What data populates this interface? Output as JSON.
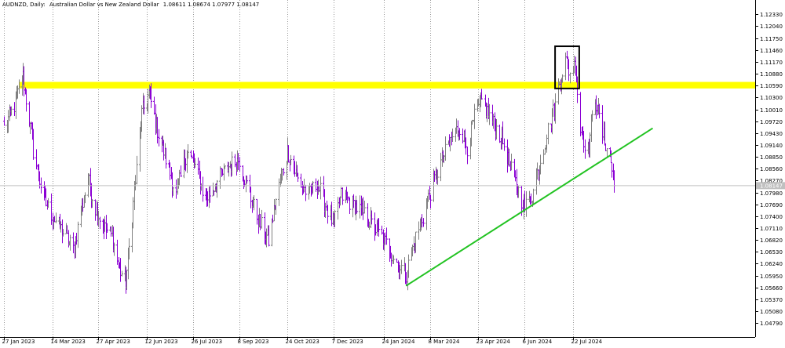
{
  "chart_header": {
    "symbol": "AUDNZD, Daily:",
    "description": "Australian Dollar vs New Zealand Dollar",
    "ohlc": "1.08611 1.08674 1.07977 1.08147"
  },
  "chart_data": {
    "type": "bar",
    "title": "AUDNZD, Daily:  Australian Dollar vs New Zealand Dollar  1.08611 1.08674 1.07977 1.08147",
    "xlabel": "",
    "ylabel": "",
    "ylim": [
      1.0445,
      1.1268
    ],
    "x_date_range": [
      "2023-01-27",
      "2024-08-30"
    ],
    "grid": "vertical-dotted",
    "current_price": 1.08147,
    "current_price_label": "1.08147",
    "y_ticks": [
      "1.12330",
      "1.12040",
      "1.11750",
      "1.11460",
      "1.11170",
      "1.10880",
      "1.10590",
      "1.10300",
      "1.10010",
      "1.09720",
      "1.09430",
      "1.09140",
      "1.08850",
      "1.08560",
      "1.08270",
      "1.07980",
      "1.07690",
      "1.07400",
      "1.07110",
      "1.06820",
      "1.06530",
      "1.06240",
      "1.05950",
      "1.05660",
      "1.05370",
      "1.05080",
      "1.04790"
    ],
    "x_ticks": [
      {
        "date": "2023-01-27",
        "label": "27 Jan 2023"
      },
      {
        "date": "2023-03-14",
        "label": "14 Mar 2023"
      },
      {
        "date": "2023-04-27",
        "label": "27 Apr 2023"
      },
      {
        "date": "2023-06-12",
        "label": "12 Jun 2023"
      },
      {
        "date": "2023-07-26",
        "label": "26 Jul 2023"
      },
      {
        "date": "2023-09-08",
        "label": "8 Sep 2023"
      },
      {
        "date": "2023-10-24",
        "label": "24 Oct 2023"
      },
      {
        "date": "2023-12-07",
        "label": "7 Dec 2023"
      },
      {
        "date": "2024-01-24",
        "label": "24 Jan 2024"
      },
      {
        "date": "2024-03-08",
        "label": "8 Mar 2024"
      },
      {
        "date": "2024-04-23",
        "label": "23 Apr 2024"
      },
      {
        "date": "2024-06-06",
        "label": "6 Jun 2024"
      },
      {
        "date": "2024-07-22",
        "label": "22 Jul 2024"
      }
    ],
    "price_path": [
      {
        "date": "2023-01-27",
        "close": 1.0955
      },
      {
        "date": "2023-02-06",
        "close": 1.101
      },
      {
        "date": "2023-02-14",
        "close": 1.108
      },
      {
        "date": "2023-02-24",
        "close": 1.09
      },
      {
        "date": "2023-03-06",
        "close": 1.078
      },
      {
        "date": "2023-03-14",
        "close": 1.074
      },
      {
        "date": "2023-03-24",
        "close": 1.07
      },
      {
        "date": "2023-04-03",
        "close": 1.066
      },
      {
        "date": "2023-04-10",
        "close": 1.075
      },
      {
        "date": "2023-04-17",
        "close": 1.083
      },
      {
        "date": "2023-04-24",
        "close": 1.076
      },
      {
        "date": "2023-05-03",
        "close": 1.071
      },
      {
        "date": "2023-05-10",
        "close": 1.069
      },
      {
        "date": "2023-05-17",
        "close": 1.061
      },
      {
        "date": "2023-05-23",
        "close": 1.058
      },
      {
        "date": "2023-05-30",
        "close": 1.077
      },
      {
        "date": "2023-06-07",
        "close": 1.099
      },
      {
        "date": "2023-06-14",
        "close": 1.104
      },
      {
        "date": "2023-06-21",
        "close": 1.096
      },
      {
        "date": "2023-06-30",
        "close": 1.088
      },
      {
        "date": "2023-07-10",
        "close": 1.079
      },
      {
        "date": "2023-07-20",
        "close": 1.09
      },
      {
        "date": "2023-07-28",
        "close": 1.086
      },
      {
        "date": "2023-08-07",
        "close": 1.078
      },
      {
        "date": "2023-08-17",
        "close": 1.082
      },
      {
        "date": "2023-08-28",
        "close": 1.086
      },
      {
        "date": "2023-09-08",
        "close": 1.088
      },
      {
        "date": "2023-09-18",
        "close": 1.079
      },
      {
        "date": "2023-09-28",
        "close": 1.072
      },
      {
        "date": "2023-10-06",
        "close": 1.068
      },
      {
        "date": "2023-10-13",
        "close": 1.078
      },
      {
        "date": "2023-10-24",
        "close": 1.09
      },
      {
        "date": "2023-11-03",
        "close": 1.083
      },
      {
        "date": "2023-11-13",
        "close": 1.079
      },
      {
        "date": "2023-11-21",
        "close": 1.082
      },
      {
        "date": "2023-11-30",
        "close": 1.076
      },
      {
        "date": "2023-12-07",
        "close": 1.072
      },
      {
        "date": "2023-12-14",
        "close": 1.079
      },
      {
        "date": "2023-12-25",
        "close": 1.077
      },
      {
        "date": "2024-01-03",
        "close": 1.075
      },
      {
        "date": "2024-01-12",
        "close": 1.072
      },
      {
        "date": "2024-01-22",
        "close": 1.069
      },
      {
        "date": "2024-01-31",
        "close": 1.065
      },
      {
        "date": "2024-02-07",
        "close": 1.062
      },
      {
        "date": "2024-02-14",
        "close": 1.06
      },
      {
        "date": "2024-02-22",
        "close": 1.068
      },
      {
        "date": "2024-03-01",
        "close": 1.074
      },
      {
        "date": "2024-03-08",
        "close": 1.08
      },
      {
        "date": "2024-03-18",
        "close": 1.087
      },
      {
        "date": "2024-03-28",
        "close": 1.093
      },
      {
        "date": "2024-04-05",
        "close": 1.096
      },
      {
        "date": "2024-04-12",
        "close": 1.091
      },
      {
        "date": "2024-04-19",
        "close": 1.098
      },
      {
        "date": "2024-04-26",
        "close": 1.102
      },
      {
        "date": "2024-05-06",
        "close": 1.097
      },
      {
        "date": "2024-05-15",
        "close": 1.093
      },
      {
        "date": "2024-05-24",
        "close": 1.085
      },
      {
        "date": "2024-05-31",
        "close": 1.08
      },
      {
        "date": "2024-06-06",
        "close": 1.076
      },
      {
        "date": "2024-06-14",
        "close": 1.08
      },
      {
        "date": "2024-06-21",
        "close": 1.088
      },
      {
        "date": "2024-06-28",
        "close": 1.095
      },
      {
        "date": "2024-07-05",
        "close": 1.101
      },
      {
        "date": "2024-07-10",
        "close": 1.108
      },
      {
        "date": "2024-07-15",
        "close": 1.112
      },
      {
        "date": "2024-07-19",
        "close": 1.109
      },
      {
        "date": "2024-07-24",
        "close": 1.111
      },
      {
        "date": "2024-07-29",
        "close": 1.095
      },
      {
        "date": "2024-08-05",
        "close": 1.09
      },
      {
        "date": "2024-08-12",
        "close": 1.103
      },
      {
        "date": "2024-08-19",
        "close": 1.094
      },
      {
        "date": "2024-08-26",
        "close": 1.089
      },
      {
        "date": "2024-08-30",
        "close": 1.0815
      }
    ],
    "annotations": {
      "resistance_zone": {
        "from": 1.1052,
        "to": 1.1068,
        "color": "#ffff00"
      },
      "trendline": {
        "start": {
          "date": "2024-02-14",
          "price": 1.057
        },
        "end": {
          "date": "2024-10-06",
          "price": 1.0955
        },
        "color": "#22c322"
      },
      "highlight_box": {
        "date_from": "2024-07-05",
        "date_to": "2024-07-28",
        "price_from": 1.1052,
        "price_to": 1.1155,
        "color": "#000000"
      }
    }
  },
  "colors": {
    "background": "#ffffff",
    "bullish_bar": "#808080",
    "bearish_bar": "#8b00d4",
    "grid": "#9a9a9a",
    "axis": "#000000",
    "price_line": "#c0c0c0",
    "price_label_bg": "#c0c0c0",
    "price_label_text": "#ffffff"
  }
}
